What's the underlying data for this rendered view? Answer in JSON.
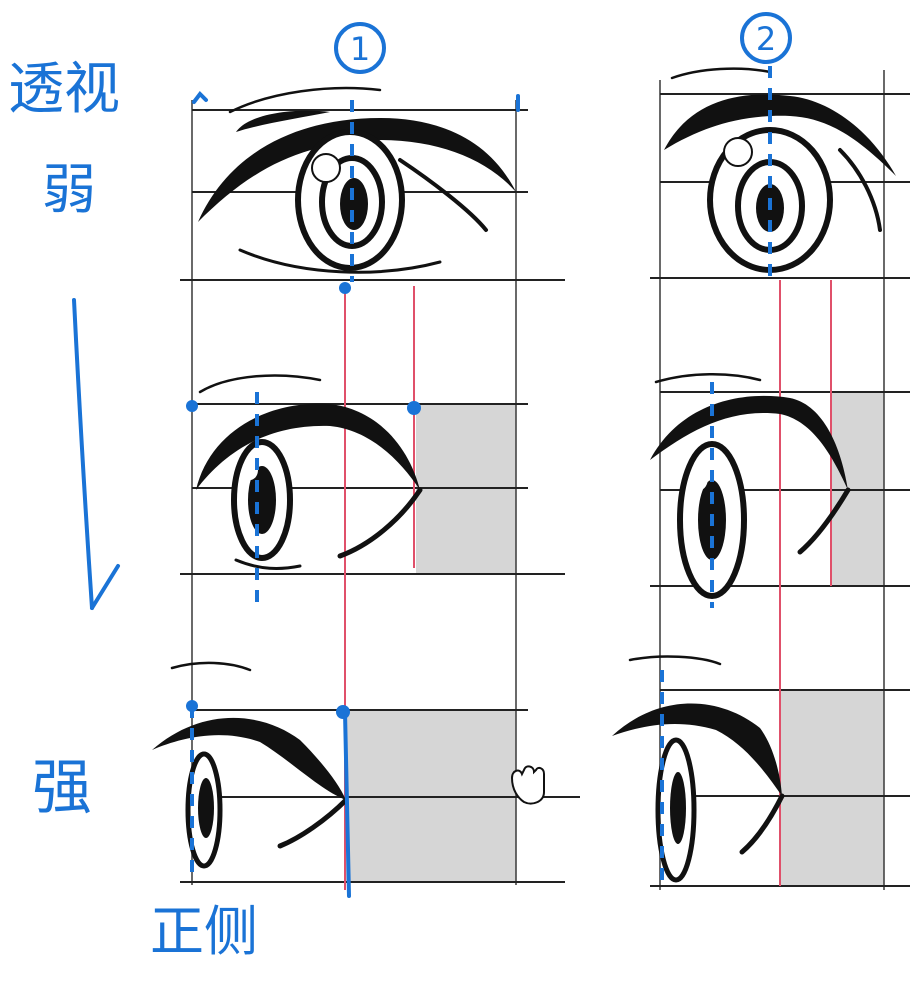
{
  "annotations": {
    "perspective_label": "透视",
    "weak_label": "弱",
    "strong_label": "强",
    "side_label": "正侧",
    "column1_marker": "1",
    "column2_marker": "2"
  },
  "colors": {
    "annotation_blue": "#1a73d6",
    "guide_pink": "#e0506a",
    "grid_black": "#222222",
    "shade_gray": "#d6d6d6"
  }
}
